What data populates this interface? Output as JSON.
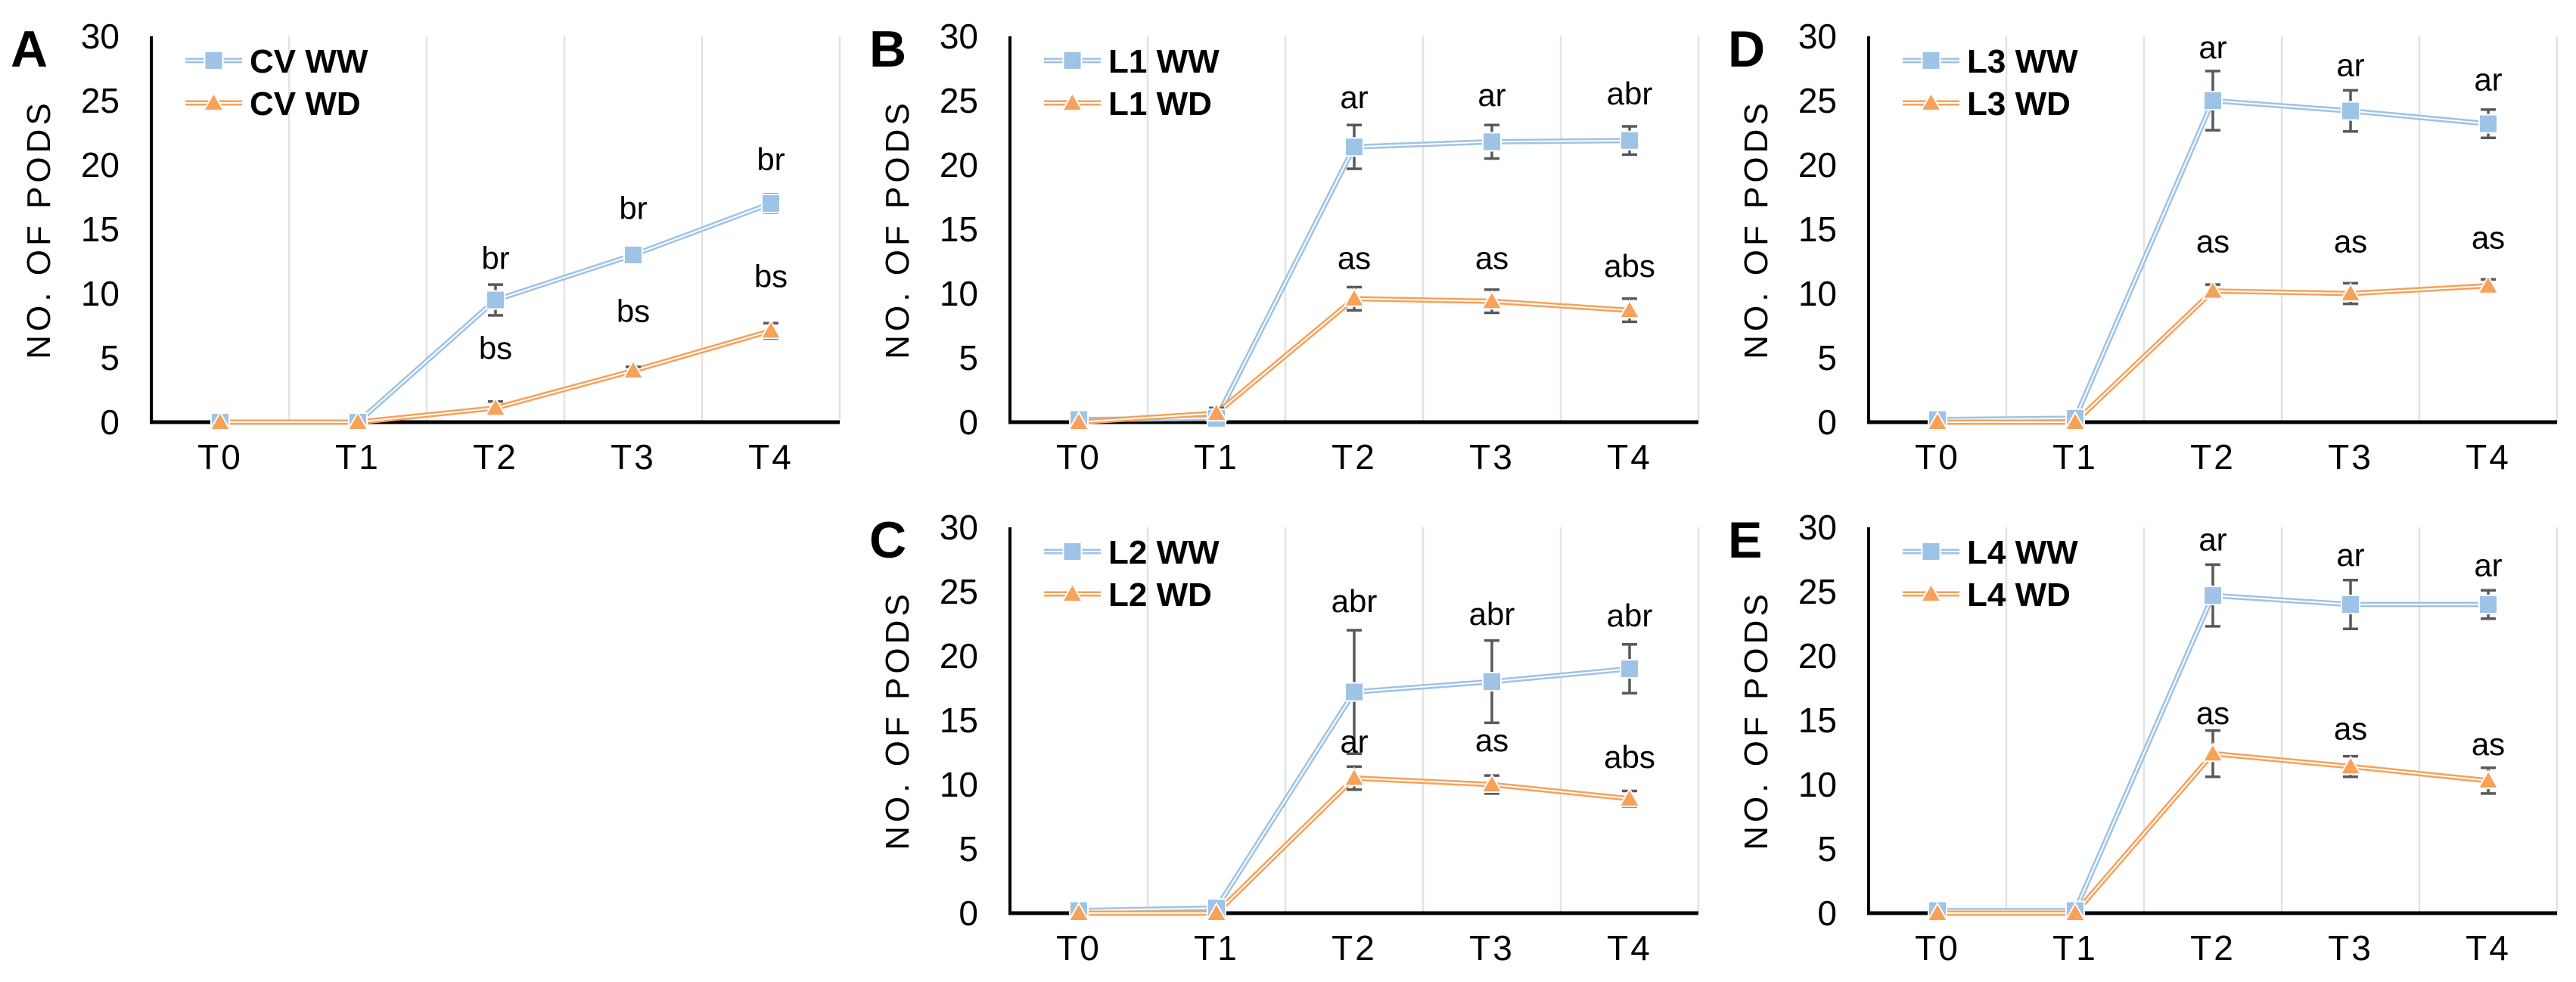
{
  "figure": {
    "background": "#FFFFFF",
    "ylabel": "NO. OF PODS",
    "categories": [
      "T0",
      "T1",
      "T2",
      "T3",
      "T4"
    ],
    "yticks": [
      0,
      5,
      10,
      15,
      20,
      25,
      30
    ],
    "ylim": [
      0,
      30
    ],
    "gridlines": "vertical-category-boundaries",
    "legend_position": "top-left-inside",
    "colors": {
      "ww_series": "#9DC3E6",
      "wd_series": "#F7A159",
      "error_bar": "#595959",
      "gridline": "#E2E2E2",
      "axis": "#000000",
      "text": "#000000"
    }
  },
  "chart_data": [
    {
      "panel_label": "A",
      "type": "line",
      "categories": [
        "T0",
        "T1",
        "T2",
        "T3",
        "T4"
      ],
      "ylabel": "NO. OF PODS",
      "ylim": [
        0,
        30
      ],
      "yticks": [
        0,
        5,
        10,
        15,
        20,
        25,
        30
      ],
      "series": [
        {
          "name": "CV WW",
          "marker": "square",
          "color": "#9DC3E6",
          "values": [
            0,
            0,
            9.5,
            13,
            17
          ],
          "errors": [
            0,
            0,
            1.2,
            0.6,
            0.7
          ],
          "point_labels": [
            "",
            "",
            "br",
            "br",
            "br"
          ],
          "label_y": [
            null,
            null,
            11.9,
            15.8,
            19.6
          ]
        },
        {
          "name": "CV WD",
          "marker": "triangle",
          "color": "#F7A159",
          "values": [
            0,
            0,
            1.1,
            4,
            7.1
          ],
          "errors": [
            0,
            0,
            0.5,
            0.3,
            0.6
          ],
          "point_labels": [
            "",
            "",
            "bs",
            "bs",
            "bs"
          ],
          "label_y": [
            null,
            null,
            4.9,
            7.8,
            10.5
          ]
        }
      ]
    },
    {
      "panel_label": "B",
      "type": "line",
      "categories": [
        "T0",
        "T1",
        "T2",
        "T3",
        "T4"
      ],
      "ylabel": "NO. OF PODS",
      "ylim": [
        0,
        30
      ],
      "yticks": [
        0,
        5,
        10,
        15,
        20,
        25,
        30
      ],
      "series": [
        {
          "name": "L1 WW",
          "marker": "square",
          "color": "#9DC3E6",
          "values": [
            0.2,
            0.3,
            21.4,
            21.8,
            21.9
          ],
          "errors": [
            0,
            0.3,
            1.7,
            1.3,
            1.1
          ],
          "point_labels": [
            "",
            "",
            "ar",
            "ar",
            "abr"
          ],
          "label_y": [
            null,
            null,
            24.4,
            24.6,
            24.7
          ]
        },
        {
          "name": "L1 WD",
          "marker": "triangle",
          "color": "#F7A159",
          "values": [
            0,
            0.7,
            9.6,
            9.4,
            8.7
          ],
          "errors": [
            0,
            0.4,
            0.9,
            0.9,
            0.9
          ],
          "point_labels": [
            "",
            "",
            "as",
            "as",
            "abs"
          ],
          "label_y": [
            null,
            null,
            11.9,
            11.9,
            11.3
          ]
        }
      ]
    },
    {
      "panel_label": "D",
      "type": "line",
      "categories": [
        "T0",
        "T1",
        "T2",
        "T3",
        "T4"
      ],
      "ylabel": "NO. OF PODS",
      "ylim": [
        0,
        30
      ],
      "yticks": [
        0,
        5,
        10,
        15,
        20,
        25,
        30
      ],
      "series": [
        {
          "name": "L3 WW",
          "marker": "square",
          "color": "#9DC3E6",
          "values": [
            0.2,
            0.3,
            25,
            24.2,
            23.2
          ],
          "errors": [
            0,
            0,
            2.3,
            1.6,
            1.1
          ],
          "point_labels": [
            "",
            "",
            "ar",
            "ar",
            "ar"
          ],
          "label_y": [
            null,
            null,
            28.3,
            26.9,
            25.8
          ]
        },
        {
          "name": "L3 WD",
          "marker": "triangle",
          "color": "#F7A159",
          "values": [
            0,
            0,
            10.2,
            10,
            10.6
          ],
          "errors": [
            0,
            0,
            0.5,
            0.8,
            0.5
          ],
          "point_labels": [
            "",
            "",
            "as",
            "as",
            "as"
          ],
          "label_y": [
            null,
            null,
            13.2,
            13.2,
            13.5
          ]
        }
      ]
    },
    {
      "panel_label": "C",
      "type": "line",
      "categories": [
        "T0",
        "T1",
        "T2",
        "T3",
        "T4"
      ],
      "ylabel": "NO. OF PODS",
      "ylim": [
        0,
        30
      ],
      "yticks": [
        0,
        5,
        10,
        15,
        20,
        25,
        30
      ],
      "series": [
        {
          "name": "L2 WW",
          "marker": "square",
          "color": "#9DC3E6",
          "values": [
            0.2,
            0.4,
            17.2,
            18,
            19
          ],
          "errors": [
            0,
            0,
            4.8,
            3.2,
            1.9
          ],
          "point_labels": [
            "",
            "",
            "abr",
            "abr",
            "abr"
          ],
          "label_y": [
            null,
            null,
            23.4,
            22.4,
            22.3
          ]
        },
        {
          "name": "L2 WD",
          "marker": "triangle",
          "color": "#F7A159",
          "values": [
            0,
            0,
            10.5,
            10,
            8.9
          ],
          "errors": [
            0,
            0,
            0.9,
            0.7,
            0.6
          ],
          "point_labels": [
            "",
            "",
            "ar",
            "as",
            "abs"
          ],
          "label_y": [
            null,
            null,
            12.5,
            12.6,
            11.3
          ]
        }
      ]
    },
    {
      "panel_label": "E",
      "type": "line",
      "categories": [
        "T0",
        "T1",
        "T2",
        "T3",
        "T4"
      ],
      "ylabel": "NO. OF PODS",
      "ylim": [
        0,
        30
      ],
      "yticks": [
        0,
        5,
        10,
        15,
        20,
        25,
        30
      ],
      "series": [
        {
          "name": "L4 WW",
          "marker": "square",
          "color": "#9DC3E6",
          "values": [
            0.2,
            0.2,
            24.7,
            24,
            24
          ],
          "errors": [
            0,
            0,
            2.4,
            1.9,
            1.1
          ],
          "point_labels": [
            "",
            "",
            "ar",
            "ar",
            "ar"
          ],
          "label_y": [
            null,
            null,
            28.2,
            27,
            26.2
          ]
        },
        {
          "name": "L4 WD",
          "marker": "triangle",
          "color": "#F7A159",
          "values": [
            0,
            0,
            12.4,
            11.4,
            10.3
          ],
          "errors": [
            0,
            0,
            1.8,
            0.8,
            1.0
          ],
          "point_labels": [
            "",
            "",
            "as",
            "as",
            "as"
          ],
          "label_y": [
            null,
            null,
            14.7,
            13.5,
            12.3
          ]
        }
      ]
    }
  ]
}
